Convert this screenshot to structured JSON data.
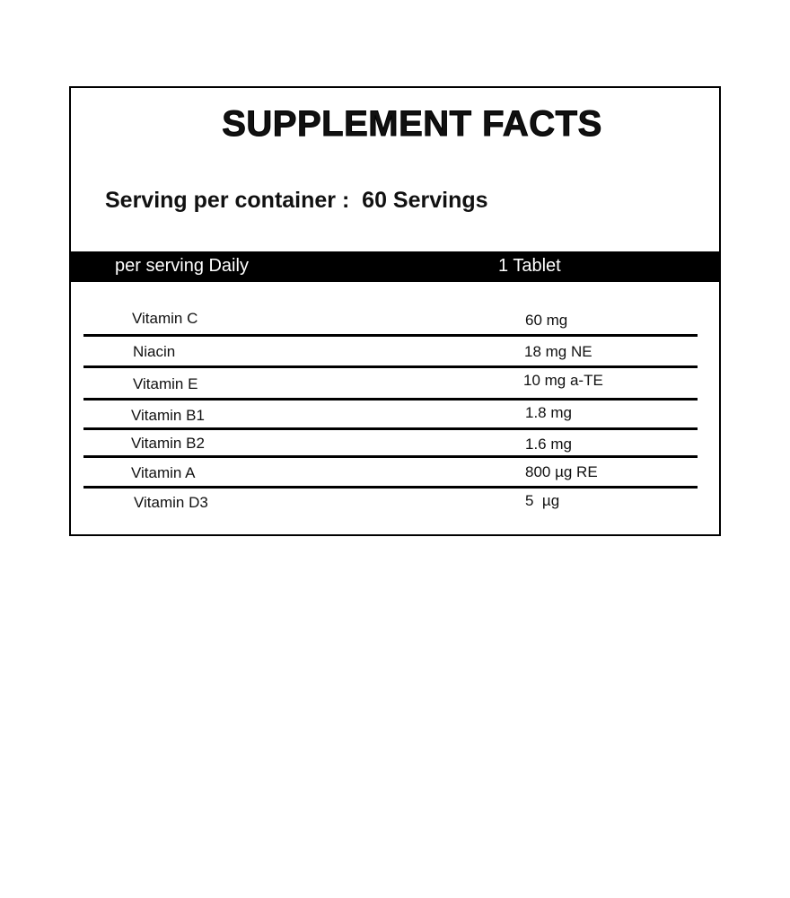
{
  "title": "SUPPLEMENT FACTS",
  "serving": "Serving per container :  60 Servings",
  "header": {
    "left": "per serving Daily",
    "right": "1 Tablet"
  },
  "rows": [
    {
      "name": "Vitamin C",
      "amount": "60 mg"
    },
    {
      "name": "Niacin",
      "amount": "18 mg NE"
    },
    {
      "name": "Vitamin E",
      "amount": "10 mg a-TE"
    },
    {
      "name": "Vitamin B1",
      "amount": "1.8 mg"
    },
    {
      "name": "Vitamin B2",
      "amount": "1.6 mg"
    },
    {
      "name": "Vitamin A",
      "amount": "800 µg RE"
    },
    {
      "name": "Vitamin D3",
      "amount": "5  µg"
    }
  ]
}
